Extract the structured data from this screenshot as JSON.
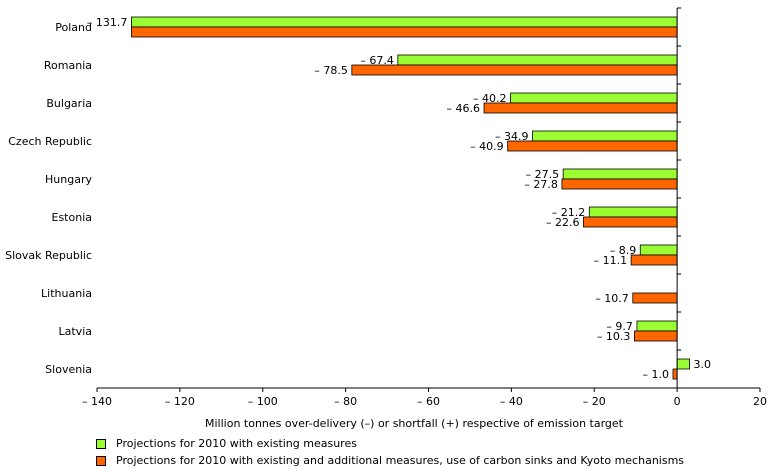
{
  "chart_data": {
    "type": "bar",
    "orientation": "horizontal",
    "categories": [
      "Poland",
      "Romania",
      "Bulgaria",
      "Czech Republic",
      "Hungary",
      "Estonia",
      "Slovak Republic",
      "Lithuania",
      "Latvia",
      "Slovenia"
    ],
    "series": [
      {
        "name": "Projections for 2010 with existing measures",
        "color": "#99ff33",
        "values": [
          -131.7,
          -67.4,
          -40.2,
          -34.9,
          -27.5,
          -21.2,
          -8.9,
          null,
          -9.7,
          3.0
        ],
        "labels": [
          "– 131.7",
          "– 67.4",
          "– 40.2",
          "– 34.9",
          "– 27.5",
          "– 21.2",
          "– 8.9",
          "",
          "– 9.7",
          "3.0"
        ]
      },
      {
        "name": "Projections for 2010 with existing and additional measures, use of carbon sinks and Kyoto mechanisms",
        "color": "#ff6600",
        "values": [
          -131.7,
          -78.5,
          -46.6,
          -40.9,
          -27.8,
          -22.6,
          -11.1,
          -10.7,
          -10.3,
          -1.0
        ],
        "labels": [
          "",
          "– 78.5",
          "– 46.6",
          "– 40.9",
          "– 27.8",
          "– 22.6",
          "– 11.1",
          "– 10.7",
          "– 10.3",
          "– 1.0"
        ]
      }
    ],
    "xlim": [
      -140,
      20
    ],
    "xticks": [
      -140,
      -120,
      -100,
      -80,
      -60,
      -40,
      -20,
      0,
      20
    ],
    "xtick_labels": [
      "– 140",
      "– 120",
      "– 100",
      "– 80",
      "– 60",
      "– 40",
      "– 20",
      "0",
      "20"
    ],
    "xlabel": "Million tonnes over-delivery (–) or shortfall (+) respective of emission target",
    "ylabel": "",
    "title": "",
    "legend_position": "bottom",
    "grid": false
  }
}
